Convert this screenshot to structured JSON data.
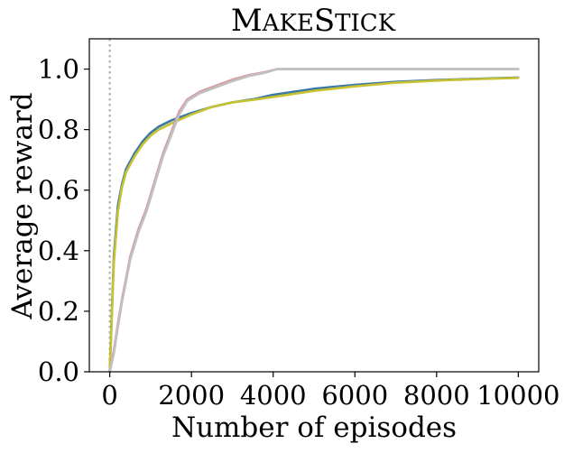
{
  "chart_data": {
    "type": "line",
    "title": "MakeStick",
    "xlabel": "Number of episodes",
    "ylabel": "Average reward",
    "xlim": [
      -500,
      10500
    ],
    "ylim": [
      0,
      1.1
    ],
    "xticks": [
      0,
      2000,
      4000,
      6000,
      8000,
      10000
    ],
    "xtick_labels": [
      "0",
      "2000",
      "4000",
      "6000",
      "8000",
      "10000"
    ],
    "yticks": [
      0,
      0.2,
      0.4,
      0.6,
      0.8,
      1.0
    ],
    "ytick_labels": [
      "0.0",
      "0.2",
      "0.4",
      "0.6",
      "0.8",
      "1.0"
    ],
    "grid": false,
    "vline": {
      "x": 0,
      "color": "#a9b5a0",
      "style": "dotted"
    },
    "series": [
      {
        "color": "#3a78a8",
        "x": [
          0,
          100,
          200,
          300,
          400,
          600,
          800,
          1000,
          1200,
          1500,
          2000,
          2500,
          3000,
          3500,
          4000,
          5000,
          6000,
          7000,
          8000,
          9000,
          10000
        ],
        "y": [
          0.0,
          0.38,
          0.55,
          0.62,
          0.67,
          0.72,
          0.76,
          0.79,
          0.81,
          0.83,
          0.855,
          0.875,
          0.89,
          0.9,
          0.915,
          0.935,
          0.948,
          0.958,
          0.964,
          0.968,
          0.972
        ]
      },
      {
        "color": "#c8c230",
        "x": [
          0,
          100,
          200,
          300,
          400,
          600,
          800,
          1000,
          1200,
          1500,
          2000,
          2500,
          3000,
          3500,
          4000,
          5000,
          6000,
          7000,
          8000,
          9000,
          10000
        ],
        "y": [
          0.0,
          0.36,
          0.53,
          0.61,
          0.66,
          0.71,
          0.75,
          0.78,
          0.8,
          0.82,
          0.85,
          0.875,
          0.89,
          0.898,
          0.908,
          0.928,
          0.943,
          0.955,
          0.962,
          0.967,
          0.971
        ]
      },
      {
        "color": "#d99aa0",
        "x": [
          0,
          100,
          200,
          300,
          500,
          700,
          900,
          1100,
          1300,
          1500,
          1700,
          1900,
          2200,
          2600,
          3000,
          3400,
          3800,
          4100,
          5000,
          7000,
          10000
        ],
        "y": [
          0.0,
          0.07,
          0.16,
          0.24,
          0.38,
          0.47,
          0.54,
          0.63,
          0.72,
          0.79,
          0.86,
          0.9,
          0.925,
          0.945,
          0.965,
          0.98,
          0.99,
          1.0,
          1.0,
          1.0,
          1.0
        ]
      },
      {
        "color": "#c0c0c0",
        "x": [
          0,
          100,
          200,
          300,
          500,
          700,
          900,
          1100,
          1300,
          1500,
          1700,
          1900,
          2200,
          2600,
          3000,
          3400,
          3800,
          4100,
          5000,
          7000,
          10000
        ],
        "y": [
          0.0,
          0.06,
          0.15,
          0.23,
          0.37,
          0.46,
          0.53,
          0.62,
          0.71,
          0.78,
          0.85,
          0.895,
          0.92,
          0.94,
          0.96,
          0.977,
          0.988,
          1.0,
          1.0,
          1.0,
          1.0
        ]
      }
    ]
  }
}
